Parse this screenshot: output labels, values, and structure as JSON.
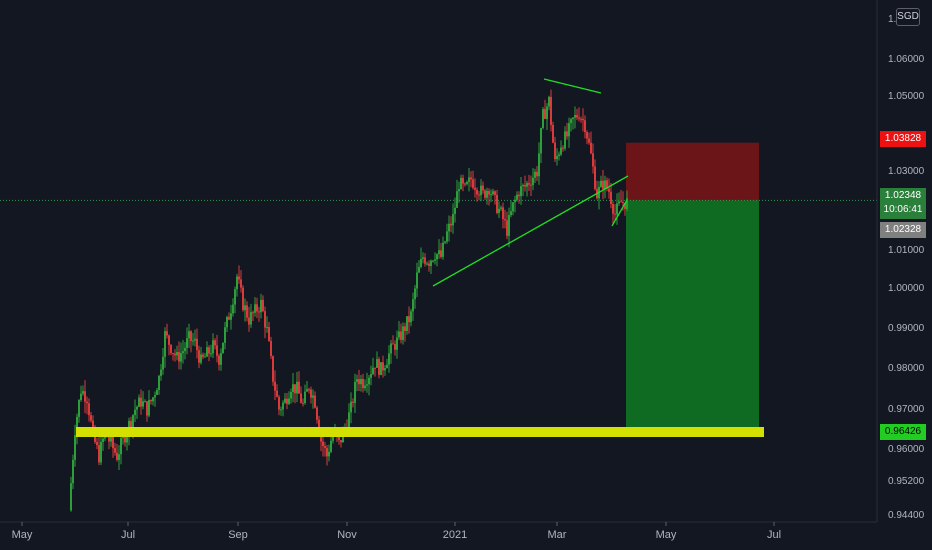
{
  "chart_data": {
    "type": "candlestick",
    "currency": "SGD",
    "x_ticks": [
      "May",
      "Jul",
      "Sep",
      "Nov",
      "2021",
      "Mar",
      "May",
      "Jul"
    ],
    "y_ticks": [
      "1.06000",
      "1.05000",
      "1.03000",
      "1.01000",
      "1.00000",
      "0.99000",
      "0.98000",
      "0.97000",
      "0.96000",
      "0.95200",
      "0.94400"
    ],
    "y_top_tick_partial": "1.0",
    "current_price": "1.02348",
    "countdown": "10:06:41",
    "last_price_label": "1.02328",
    "stop_level_label": "1.03828",
    "target_level_label": "0.96426",
    "colors": {
      "up": "#26a69a",
      "down": "#ef5350",
      "upCandle": "#2e9e3a",
      "downCandle": "#d93b3b",
      "trendline": "#22dd22",
      "support": "#d4e000",
      "stopZone": "#6b1518",
      "targetZone": "#0f6b22",
      "background": "#131722",
      "axisText": "#b2b5be",
      "stopTag": "#ee1111",
      "targetTag": "#22cc22",
      "currentTag": "#2a7f3a",
      "lastTag": "#808080"
    },
    "grid": false
  }
}
